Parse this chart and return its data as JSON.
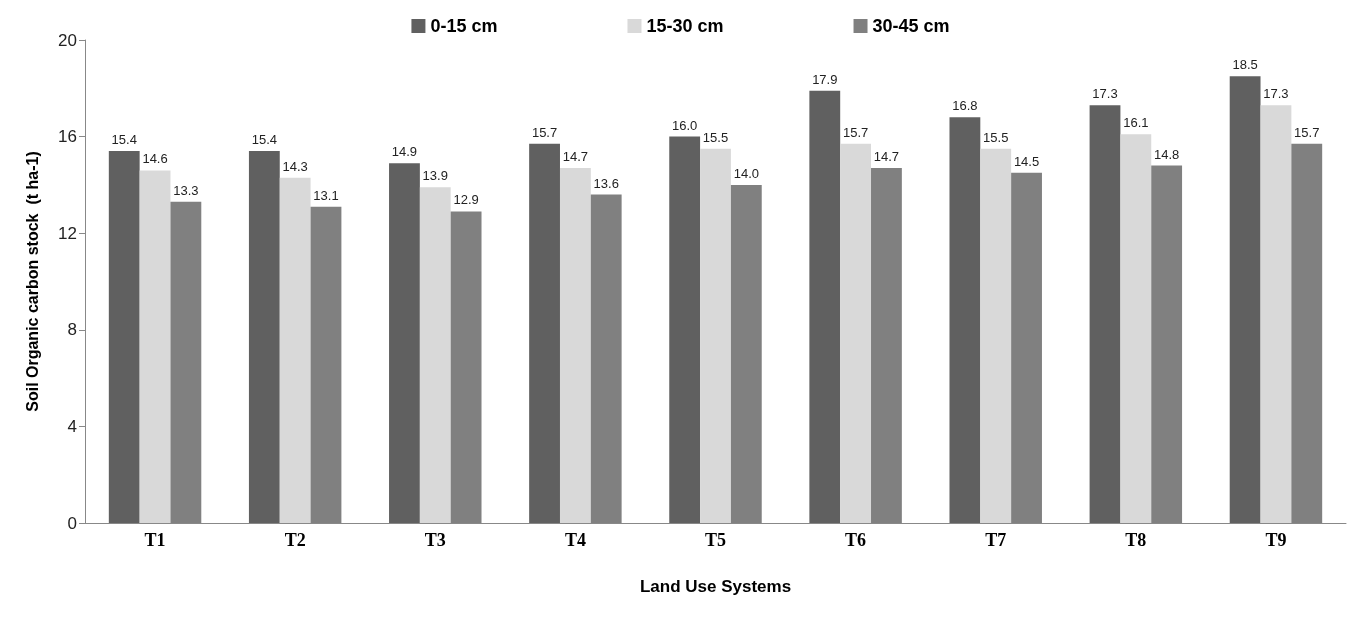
{
  "chart_data": {
    "type": "bar",
    "xlabel": "Land Use Systems",
    "ylabel": "Soil Organic carbon stock  (t ha-1)",
    "categories": [
      "T1",
      "T2",
      "T3",
      "T4",
      "T5",
      "T6",
      "T7",
      "T8",
      "T9"
    ],
    "series": [
      {
        "name": "0-15 cm",
        "color": "#606060",
        "values": [
          15.4,
          15.4,
          14.9,
          15.7,
          16.0,
          17.9,
          16.8,
          17.3,
          18.5
        ],
        "value_labels": [
          "15.4",
          "15.4",
          "14.9",
          "15.7",
          "16.0",
          "17.9",
          "16.8",
          "17.3",
          "18.5"
        ]
      },
      {
        "name": "15-30 cm",
        "color": "#d9d9d9",
        "values": [
          14.6,
          14.3,
          13.9,
          14.7,
          15.5,
          15.7,
          15.5,
          16.1,
          17.3
        ],
        "value_labels": [
          "14.6",
          "14.3",
          "13.9",
          "14.7",
          "15.5",
          "15.7",
          "15.5",
          "16.1",
          "17.3"
        ]
      },
      {
        "name": "30-45 cm",
        "color": "#808080",
        "values": [
          13.3,
          13.1,
          12.9,
          13.6,
          14.0,
          14.7,
          14.5,
          14.8,
          15.7
        ],
        "value_labels": [
          "13.3",
          "13.1",
          "12.9",
          "13.6",
          "14.0",
          "14.7",
          "14.5",
          "14.8",
          "15.7"
        ]
      }
    ],
    "ylim": [
      0,
      20
    ],
    "yticks": [
      0,
      4,
      8,
      12,
      16,
      20
    ],
    "grid": false,
    "legend": "top"
  }
}
